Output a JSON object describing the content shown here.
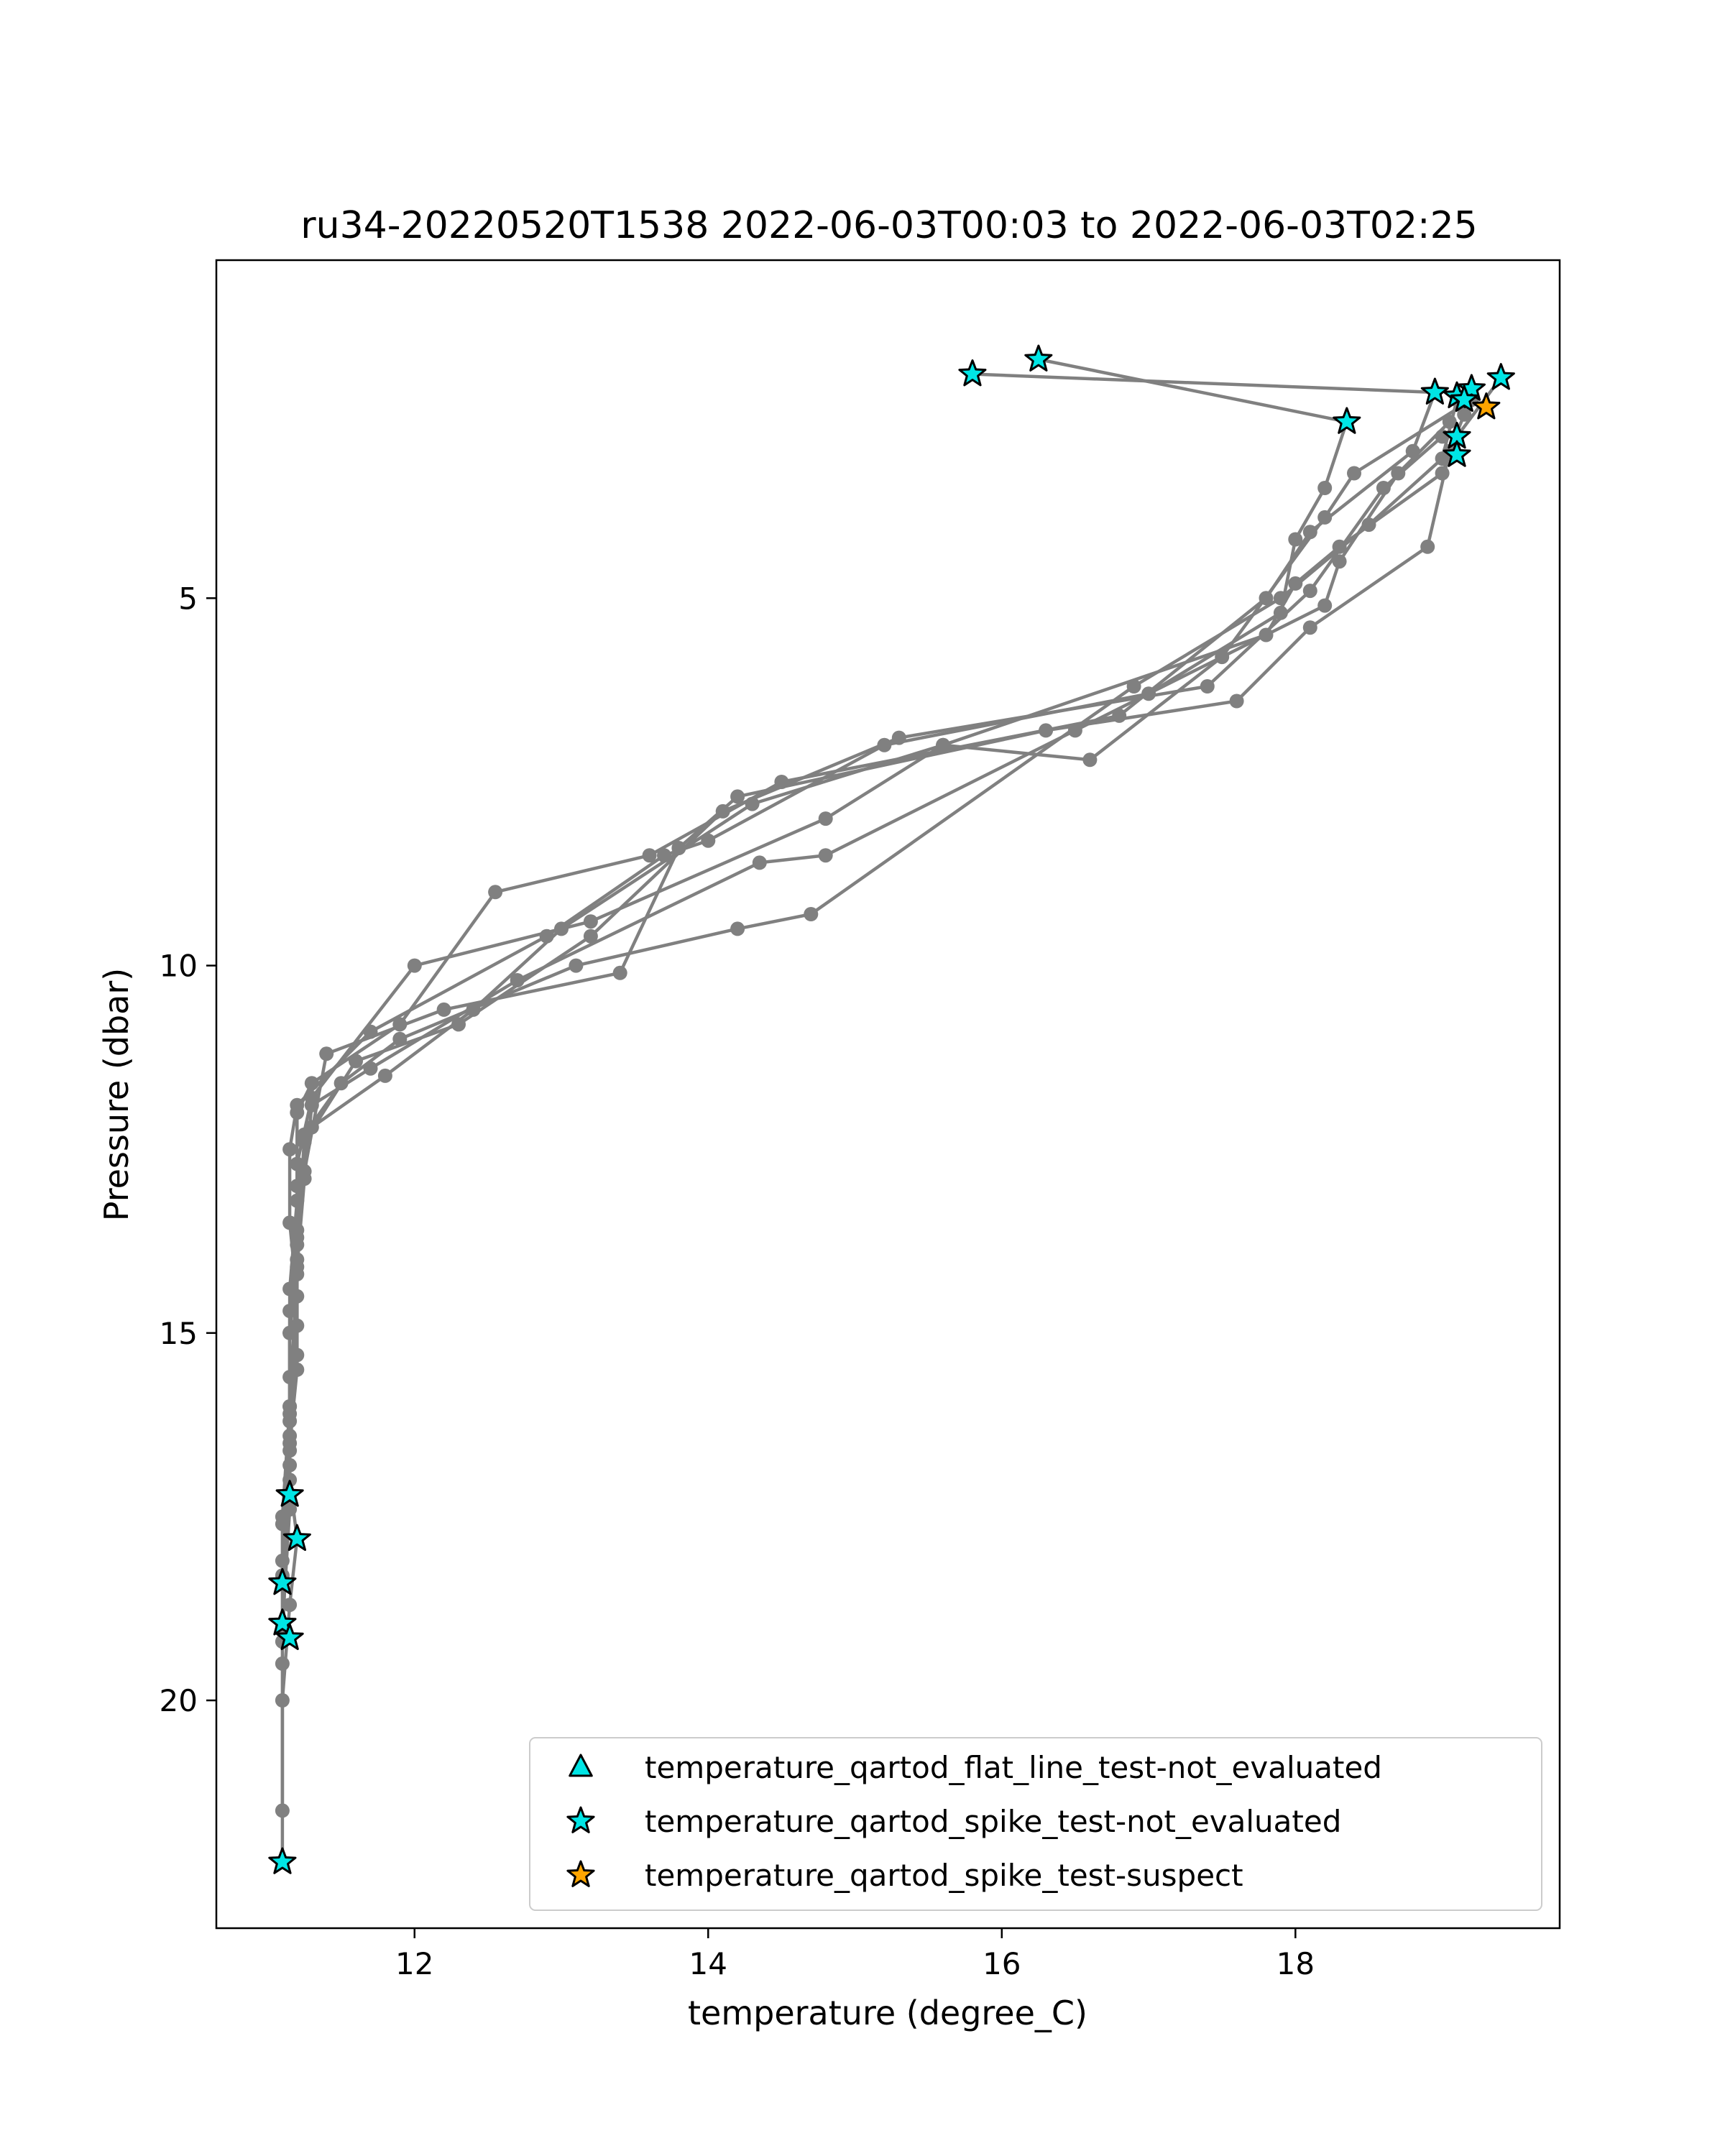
{
  "chart_data": {
    "type": "scatter",
    "title": "ru34-20220520T1538 2022-06-03T00:03 to 2022-06-03T02:25",
    "xlabel": "temperature (degree_C)",
    "ylabel": "Pressure (dbar)",
    "xlim": [
      10.65,
      19.8
    ],
    "ylim": [
      23.1,
      0.4
    ],
    "y_inverted": true,
    "grid": false,
    "legend_position": "lower-right",
    "x_ticks": [
      12,
      14,
      16,
      18
    ],
    "y_ticks": [
      5,
      10,
      15,
      20
    ],
    "line_color": "#808080",
    "profile_profiles": [
      {
        "t": [
          19.4,
          19.1,
          19.0,
          18.3,
          18.0,
          17.8,
          15.6,
          14.3,
          13.0,
          12.4,
          11.8,
          11.3,
          11.2,
          11.2,
          11.15,
          11.15,
          11.15,
          11.2,
          11.15,
          11.1,
          11.1
        ],
        "p": [
          2.0,
          2.8,
          3.3,
          4.3,
          4.8,
          5.5,
          7.0,
          7.8,
          9.5,
          10.6,
          11.5,
          12.2,
          13.0,
          14.0,
          15.0,
          16.0,
          17.0,
          17.8,
          18.7,
          20.0,
          22.2
        ]
      },
      {
        "t": [
          16.25,
          18.35,
          18.2,
          18.0,
          17.9,
          17.0,
          15.2,
          14.0,
          13.7,
          12.9,
          11.7,
          11.2,
          11.15,
          11.15,
          11.2,
          11.2,
          11.15,
          11.15,
          11.1
        ],
        "p": [
          1.75,
          2.6,
          3.5,
          4.2,
          5.2,
          6.3,
          7.0,
          8.3,
          8.5,
          9.6,
          10.9,
          11.9,
          12.5,
          13.5,
          14.5,
          15.5,
          16.5,
          17.2,
          18.3
        ]
      },
      {
        "t": [
          15.8,
          18.95,
          18.8,
          18.1,
          17.8,
          16.8,
          14.5,
          13.6,
          12.55,
          11.9,
          11.3,
          11.2,
          11.2,
          11.15,
          11.15,
          11.15,
          11.1
        ],
        "p": [
          1.95,
          2.2,
          3.0,
          4.1,
          5.0,
          6.6,
          7.5,
          8.5,
          9.0,
          10.8,
          11.6,
          12.0,
          13.2,
          14.4,
          15.6,
          16.8,
          19.2
        ]
      },
      {
        "t": [
          19.2,
          19.15,
          19.05,
          18.9,
          18.1,
          17.6,
          16.3,
          14.2,
          13.8,
          13.4,
          12.2,
          11.4,
          11.25,
          11.2,
          11.2,
          11.15,
          11.15,
          11.1
        ],
        "p": [
          2.15,
          2.5,
          3.0,
          4.3,
          5.4,
          6.4,
          6.8,
          7.7,
          8.4,
          10.1,
          10.6,
          11.2,
          12.8,
          13.7,
          14.9,
          16.2,
          17.4,
          19.0
        ]
      },
      {
        "t": [
          19.2,
          18.4,
          18.2,
          17.5,
          16.6,
          15.6,
          14.8,
          13.2,
          12.0,
          11.3,
          11.2,
          11.2,
          11.15,
          11.15,
          11.1,
          11.1,
          11.1
        ],
        "p": [
          2.3,
          3.3,
          3.9,
          5.8,
          7.2,
          7.0,
          8.0,
          9.4,
          10.0,
          11.8,
          12.7,
          13.8,
          15.0,
          16.1,
          17.6,
          19.5,
          21.5
        ]
      },
      {
        "t": [
          19.0,
          18.6,
          18.1,
          17.4,
          15.3,
          14.1,
          13.2,
          12.3,
          11.6,
          11.25,
          11.2,
          11.15,
          11.15,
          11.1
        ],
        "p": [
          2.8,
          3.5,
          4.9,
          6.2,
          6.9,
          7.9,
          9.6,
          10.8,
          11.3,
          12.4,
          13.6,
          14.7,
          16.4,
          18.1
        ]
      },
      {
        "t": [
          19.1,
          19.0,
          18.5,
          17.9,
          16.9,
          14.7,
          14.2,
          13.1,
          11.9,
          11.5,
          11.25,
          11.2,
          11.15,
          11.1
        ],
        "p": [
          2.3,
          3.1,
          4.0,
          5.0,
          6.2,
          9.3,
          9.5,
          10.0,
          11.0,
          11.6,
          12.3,
          14.2,
          16.0,
          17.5
        ]
      },
      {
        "t": [
          19.05,
          18.7,
          18.3,
          18.2,
          16.5,
          14.8,
          14.35,
          12.7,
          11.7,
          11.3,
          11.25,
          11.2,
          11.2,
          11.15
        ],
        "p": [
          2.6,
          3.3,
          4.5,
          5.1,
          6.8,
          8.5,
          8.6,
          10.2,
          11.4,
          11.9,
          12.9,
          14.1,
          15.3,
          16.6
        ]
      }
    ],
    "series": [
      {
        "name": "temperature_qartod_flat_line_test-not_evaluated",
        "marker": "triangle",
        "color": "#00e5e5",
        "points": []
      },
      {
        "name": "temperature_qartod_spike_test-not_evaluated",
        "marker": "star",
        "color": "#00e5e5",
        "points": [
          {
            "x": 16.25,
            "y": 1.75
          },
          {
            "x": 15.8,
            "y": 1.95
          },
          {
            "x": 18.35,
            "y": 2.6
          },
          {
            "x": 18.95,
            "y": 2.2
          },
          {
            "x": 19.1,
            "y": 2.25
          },
          {
            "x": 19.2,
            "y": 2.15
          },
          {
            "x": 19.15,
            "y": 2.3
          },
          {
            "x": 19.4,
            "y": 2.0
          },
          {
            "x": 19.1,
            "y": 2.8
          },
          {
            "x": 19.1,
            "y": 3.05
          },
          {
            "x": 11.15,
            "y": 17.2
          },
          {
            "x": 11.2,
            "y": 17.8
          },
          {
            "x": 11.1,
            "y": 18.4
          },
          {
            "x": 11.1,
            "y": 18.95
          },
          {
            "x": 11.15,
            "y": 19.15
          },
          {
            "x": 11.1,
            "y": 22.2
          }
        ]
      },
      {
        "name": "temperature_qartod_spike_test-suspect",
        "marker": "star",
        "color": "#ffa500",
        "points": [
          {
            "x": 19.3,
            "y": 2.4
          }
        ]
      }
    ]
  }
}
